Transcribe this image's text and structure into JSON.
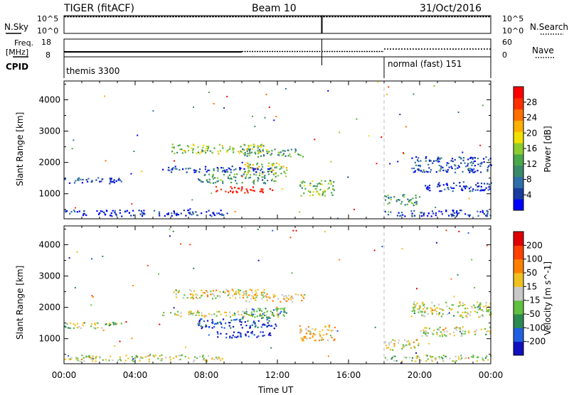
{
  "header": {
    "radar": "TIGER (fitACF)",
    "beam": "Beam 10",
    "date": "31/Oct/2016"
  },
  "top_panel": {
    "left_label": "N.Sky",
    "left_ticks": [
      "10^5",
      "10^0"
    ],
    "right_label": "N.Search",
    "right_ticks": [
      "10^5",
      "10^0"
    ]
  },
  "freq_panel": {
    "label_line1": "Freq.",
    "label_line2": "[MHz]",
    "left_ticks": [
      "18",
      "8"
    ],
    "right_label": "Nave",
    "right_ticks": [
      "60",
      "0"
    ]
  },
  "cpid_panel": {
    "label": "CPID",
    "modes": [
      {
        "name": "themis 3300",
        "start_hour": 0,
        "end_hour": 18
      },
      {
        "name": "normal (fast) 151",
        "start_hour": 18,
        "end_hour": 24
      }
    ]
  },
  "chart_data": [
    {
      "type": "heatmap",
      "title": "",
      "xlabel": "Time UT",
      "ylabel": "Slant Range [km]",
      "x_unit": "hours UT",
      "xlim": [
        0,
        24
      ],
      "ylim": [
        200,
        4600
      ],
      "x_ticks": [
        "00:00",
        "04:00",
        "08:00",
        "12:00",
        "16:00",
        "20:00",
        "00:00"
      ],
      "y_ticks": [
        1000,
        2000,
        3000,
        4000
      ],
      "colorbar": {
        "label": "Power [dB]",
        "range": [
          0,
          32
        ],
        "ticks": [
          "4",
          "8",
          "12",
          "16",
          "20",
          "24",
          "28"
        ],
        "colors": [
          "#0000ff",
          "#1a3c9f",
          "#2f6ea8",
          "#3a8a6a",
          "#4aa84a",
          "#8ccc30",
          "#f0e000",
          "#ffb000",
          "#ff7000",
          "#ff3000",
          "#ff0000"
        ]
      },
      "echo_regions": [
        {
          "t0": 0.0,
          "t1": 3.2,
          "r0": 1350,
          "r1": 1550,
          "level": 0.15
        },
        {
          "t0": 0.0,
          "t1": 9.0,
          "r0": 300,
          "r1": 500,
          "level": 0.1
        },
        {
          "t0": 6.0,
          "t1": 11.5,
          "r0": 2300,
          "r1": 2600,
          "level": 0.5
        },
        {
          "t0": 10.0,
          "t1": 13.5,
          "r0": 2200,
          "r1": 2450,
          "level": 0.35
        },
        {
          "t0": 5.5,
          "t1": 12.0,
          "r0": 1700,
          "r1": 1900,
          "level": 0.15
        },
        {
          "t0": 7.5,
          "t1": 12.0,
          "r0": 1350,
          "r1": 1650,
          "level": 0.35
        },
        {
          "t0": 8.5,
          "t1": 11.7,
          "r0": 1050,
          "r1": 1250,
          "level": 0.95
        },
        {
          "t0": 10.0,
          "t1": 12.5,
          "r0": 1650,
          "r1": 2000,
          "level": 0.55
        },
        {
          "t0": 13.2,
          "t1": 15.2,
          "r0": 950,
          "r1": 1450,
          "level": 0.45
        },
        {
          "t0": 18.0,
          "t1": 20.0,
          "r0": 650,
          "r1": 1000,
          "level": 0.35
        },
        {
          "t0": 19.5,
          "t1": 24.0,
          "r0": 1700,
          "r1": 2200,
          "level": 0.15
        },
        {
          "t0": 20.0,
          "t1": 24.0,
          "r0": 1100,
          "r1": 1400,
          "level": 0.12
        },
        {
          "t0": 18.0,
          "t1": 24.0,
          "r0": 300,
          "r1": 500,
          "level": 0.1
        }
      ]
    },
    {
      "type": "heatmap",
      "title": "",
      "xlabel": "Time UT",
      "ylabel": "Slant Range [km]",
      "x_unit": "hours UT",
      "xlim": [
        0,
        24
      ],
      "ylim": [
        200,
        4600
      ],
      "x_ticks": [
        "00:00",
        "04:00",
        "08:00",
        "12:00",
        "16:00",
        "20:00",
        "00:00"
      ],
      "y_ticks": [
        1000,
        2000,
        3000,
        4000
      ],
      "colorbar": {
        "label": "Velocity [m s^-1]",
        "ticks": [
          "200",
          "100",
          "50",
          "15",
          "-15",
          "-50",
          "-100",
          "-200"
        ],
        "colors": [
          "#1010c0",
          "#2060e0",
          "#2a8a50",
          "#60c040",
          "#c8c8c8",
          "#f0c020",
          "#ff8000",
          "#ff4000",
          "#e00000"
        ]
      },
      "echo_regions": [
        {
          "t0": 0.0,
          "t1": 3.2,
          "r0": 1350,
          "r1": 1550,
          "level": 0.45
        },
        {
          "t0": 0.0,
          "t1": 9.0,
          "r0": 300,
          "r1": 500,
          "level": 0.5
        },
        {
          "t0": 6.0,
          "t1": 11.5,
          "r0": 2300,
          "r1": 2600,
          "level": 0.55
        },
        {
          "t0": 10.0,
          "t1": 13.5,
          "r0": 2200,
          "r1": 2450,
          "level": 0.6
        },
        {
          "t0": 5.5,
          "t1": 12.0,
          "r0": 1700,
          "r1": 1900,
          "level": 0.5
        },
        {
          "t0": 7.5,
          "t1": 12.0,
          "r0": 1350,
          "r1": 1650,
          "level": 0.15
        },
        {
          "t0": 8.5,
          "t1": 11.7,
          "r0": 1050,
          "r1": 1250,
          "level": 0.05
        },
        {
          "t0": 10.0,
          "t1": 12.5,
          "r0": 1650,
          "r1": 2000,
          "level": 0.3
        },
        {
          "t0": 13.2,
          "t1": 15.2,
          "r0": 950,
          "r1": 1450,
          "level": 0.6
        },
        {
          "t0": 18.0,
          "t1": 20.0,
          "r0": 650,
          "r1": 1000,
          "level": 0.5
        },
        {
          "t0": 19.5,
          "t1": 24.0,
          "r0": 1700,
          "r1": 2200,
          "level": 0.5
        },
        {
          "t0": 20.0,
          "t1": 24.0,
          "r0": 1100,
          "r1": 1400,
          "level": 0.5
        },
        {
          "t0": 18.0,
          "t1": 24.0,
          "r0": 300,
          "r1": 500,
          "level": 0.45
        }
      ]
    }
  ]
}
